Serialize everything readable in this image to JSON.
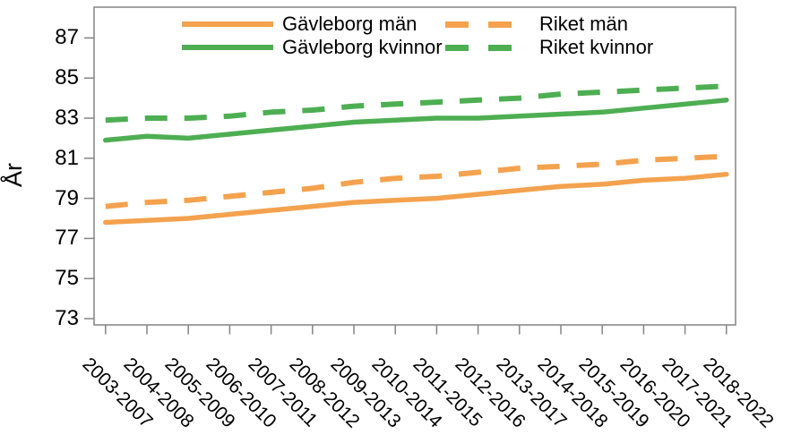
{
  "chart_data": {
    "type": "line",
    "title": "",
    "xlabel": "",
    "ylabel": "År",
    "ylim": [
      72.7,
      88.5
    ],
    "yticks": [
      87,
      85,
      83,
      81,
      79,
      77,
      75,
      73
    ],
    "grid": false,
    "legend_position": "top",
    "categories": [
      "2003-2007",
      "2004-2008",
      "2005-2009",
      "2006-2010",
      "2007-2011",
      "2008-2012",
      "2009-2013",
      "2010-2014",
      "2011-2015",
      "2012-2016",
      "2013-2017",
      "2014-2018",
      "2015-2019",
      "2016-2020",
      "2017-2021",
      "2018-2022"
    ],
    "series": [
      {
        "name": "Gävleborg män",
        "color": "#F4A24E",
        "style": "solid",
        "values": [
          77.8,
          77.9,
          78.0,
          78.2,
          78.4,
          78.6,
          78.8,
          78.9,
          79.0,
          79.2,
          79.4,
          79.6,
          79.7,
          79.9,
          80.0,
          80.2
        ]
      },
      {
        "name": "Gävleborg kvinnor",
        "color": "#4DAE52",
        "style": "solid",
        "values": [
          81.9,
          82.1,
          82.0,
          82.2,
          82.4,
          82.6,
          82.8,
          82.9,
          83.0,
          83.0,
          83.1,
          83.2,
          83.3,
          83.5,
          83.7,
          83.9
        ]
      },
      {
        "name": "Riket män",
        "color": "#F4A24E",
        "style": "dashed",
        "values": [
          78.6,
          78.8,
          78.9,
          79.1,
          79.3,
          79.5,
          79.8,
          80.0,
          80.1,
          80.3,
          80.5,
          80.6,
          80.7,
          80.9,
          81.0,
          81.1
        ]
      },
      {
        "name": "Riket kvinnor",
        "color": "#4DAE52",
        "style": "dashed",
        "values": [
          82.9,
          83.0,
          83.0,
          83.1,
          83.3,
          83.4,
          83.6,
          83.7,
          83.8,
          83.9,
          84.0,
          84.2,
          84.3,
          84.4,
          84.5,
          84.6
        ]
      }
    ]
  },
  "colors": {
    "axis": "#848484",
    "text": "#000000",
    "background": "#FFFFFF",
    "orange": "#F4A24E",
    "green": "#4DAE52"
  }
}
